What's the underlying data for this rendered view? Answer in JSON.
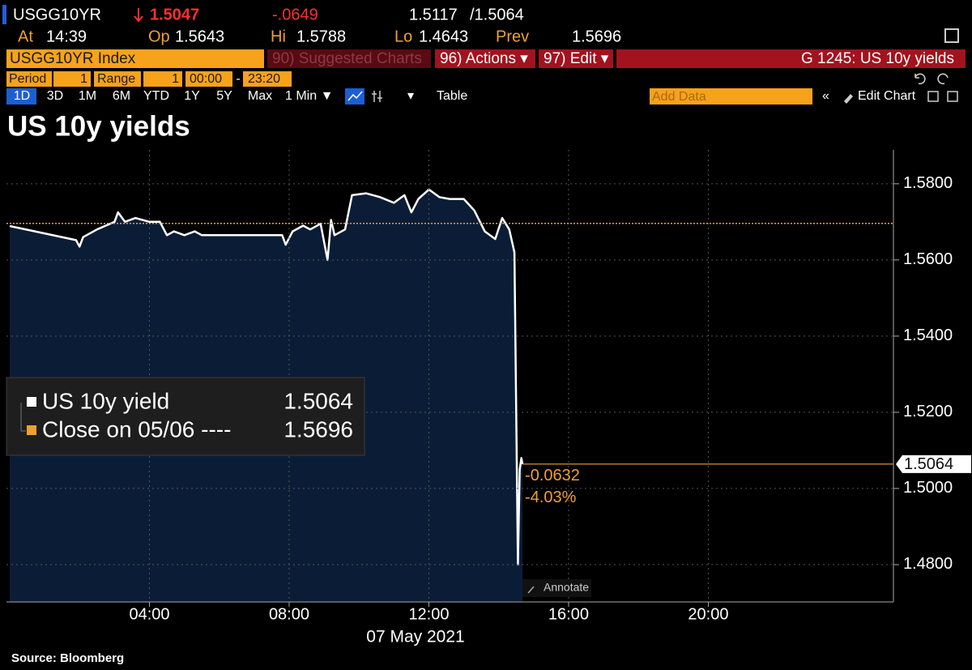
{
  "header": {
    "ticker": "USGG10YR",
    "last": "1.5047",
    "change": "-.0649",
    "bid": "1.5117",
    "ask": "/1.5064",
    "stats": [
      {
        "label": "At",
        "value": "14:39"
      },
      {
        "label": "Op",
        "value": "1.5643"
      },
      {
        "label": "Hi",
        "value": "1.5788"
      },
      {
        "label": "Lo",
        "value": "1.4643"
      },
      {
        "label": "Prev",
        "value": "1.5696"
      }
    ]
  },
  "toolbar": {
    "security": "USGG10YR Index",
    "menus": [
      "90) Suggested Charts",
      "96) Actions ▾",
      "97) Edit ▾"
    ],
    "chart_id": "G 1245: US 10y yields"
  },
  "settings": {
    "period_label": "Period",
    "period": "1",
    "range_label": "Range",
    "range": "1",
    "start": "00:00",
    "separator": "-",
    "end": "23:20"
  },
  "ranges": [
    "1D",
    "3D",
    "1M",
    "6M",
    "YTD",
    "1Y",
    "5Y",
    "Max"
  ],
  "interval": "1 Min ▼",
  "table": "Table",
  "add_data": "Add Data",
  "edit_chart": "Edit Chart",
  "annotate": "Annotate",
  "source": "Source: Bloomberg",
  "chart_data": {
    "type": "line",
    "title": "US 10y yields",
    "xlabel": "07 May 2021",
    "x": [
      0,
      1.9,
      2.0,
      2.1,
      2.5,
      3.0,
      3.1,
      3.3,
      3.6,
      4.0,
      4.3,
      4.5,
      4.7,
      5.0,
      5.3,
      5.5,
      6.0,
      7.0,
      7.5,
      7.8,
      7.9,
      8.1,
      8.4,
      8.6,
      8.9,
      9.1,
      9.2,
      9.3,
      9.6,
      9.8,
      10.2,
      10.6,
      11.0,
      11.3,
      11.5,
      11.7,
      12.0,
      12.3,
      12.6,
      13.0,
      13.3,
      13.6,
      13.9,
      14.1,
      14.3,
      14.45,
      14.55,
      14.6,
      14.65,
      14.68
    ],
    "series": [
      {
        "name": "US 10y yield",
        "color": "#ffffff",
        "fill": "#0b1d36",
        "values": [
          1.5689,
          1.5652,
          1.5635,
          1.566,
          1.568,
          1.57,
          1.5725,
          1.57,
          1.571,
          1.57,
          1.57,
          1.5665,
          1.5675,
          1.5665,
          1.5675,
          1.5665,
          1.5665,
          1.5665,
          1.5665,
          1.5665,
          1.564,
          1.5675,
          1.569,
          1.568,
          1.5695,
          1.56,
          1.5705,
          1.5665,
          1.568,
          1.577,
          1.5775,
          1.5765,
          1.575,
          1.577,
          1.5725,
          1.576,
          1.5785,
          1.5765,
          1.576,
          1.576,
          1.573,
          1.5675,
          1.5655,
          1.571,
          1.568,
          1.562,
          1.48,
          1.505,
          1.508,
          1.5064
        ]
      }
    ],
    "last_value": 1.5064,
    "close_line": {
      "name": "Close on 05/06 ----",
      "value": 1.5696,
      "color": "#f0a030"
    },
    "annotations": [
      "-0.0632",
      "-4.03%"
    ],
    "xlim": [
      0,
      25.3
    ],
    "ylim": [
      1.4702,
      1.5889
    ],
    "xticks": [
      {
        "value": 4,
        "label": "04:00"
      },
      {
        "value": 8,
        "label": "08:00"
      },
      {
        "value": 12,
        "label": "12:00"
      },
      {
        "value": 16,
        "label": "16:00"
      },
      {
        "value": 20,
        "label": "20:00"
      }
    ],
    "yticks": [
      {
        "value": 1.48,
        "label": "1.4800"
      },
      {
        "value": 1.5,
        "label": "1.5000"
      },
      {
        "value": 1.52,
        "label": "1.5200"
      },
      {
        "value": 1.54,
        "label": "1.5400"
      },
      {
        "value": 1.56,
        "label": "1.5600"
      },
      {
        "value": 1.58,
        "label": "1.5800"
      }
    ],
    "grid": true,
    "legend_corner": "left"
  }
}
